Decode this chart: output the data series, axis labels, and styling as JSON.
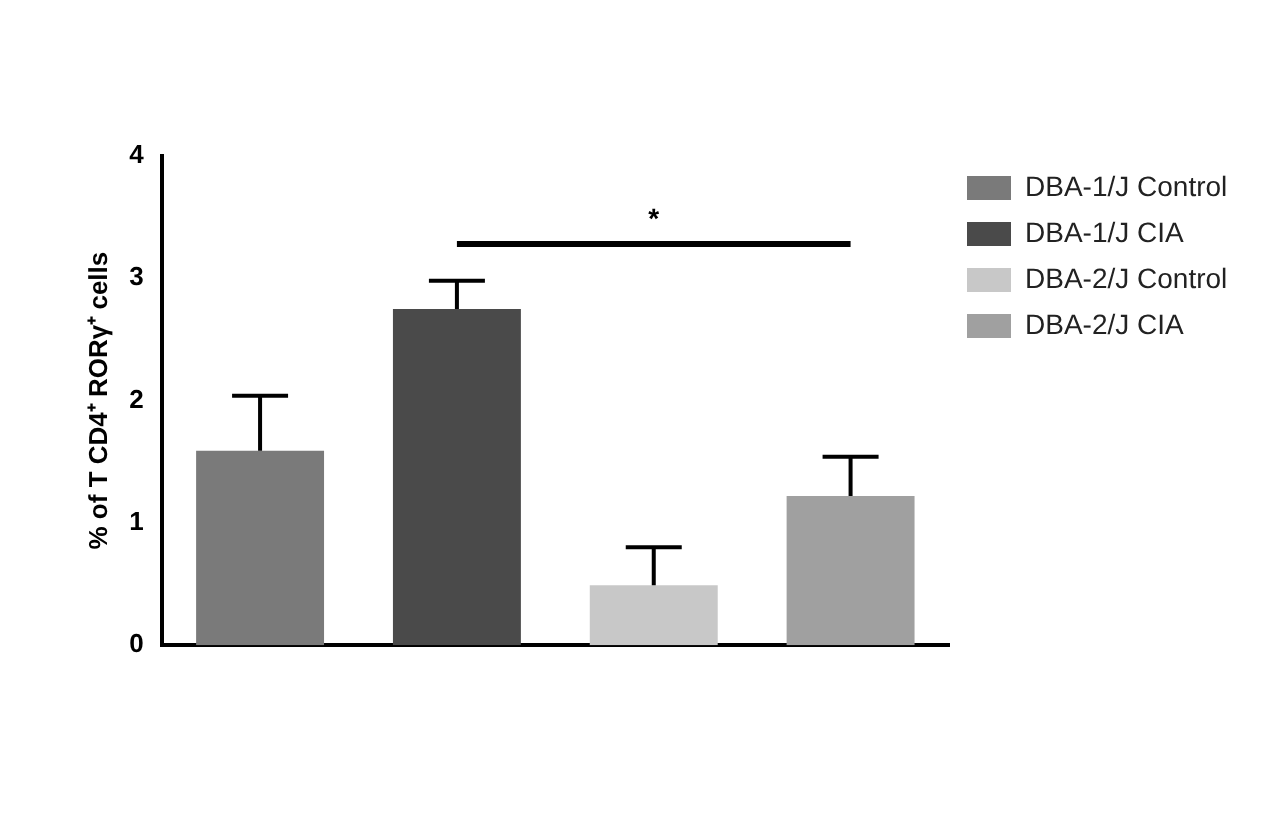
{
  "chart_data": {
    "type": "bar",
    "ylabel": "% of T CD4⁺ RORγ⁺ cells",
    "categories": [
      null,
      null,
      null,
      null
    ],
    "series": [
      {
        "name": "DBA-1/J Control",
        "color": "#7a7a7a",
        "values": [
          1.59,
          null,
          null,
          null
        ],
        "errors": [
          0.45,
          null,
          null,
          null
        ]
      },
      {
        "name": "DBA-1/J CIA",
        "color": "#4a4a4a",
        "values": [
          null,
          2.75,
          null,
          null
        ],
        "errors": [
          null,
          0.23,
          null,
          null
        ]
      },
      {
        "name": "DBA-2/J Control",
        "color": "#c8c8c8",
        "values": [
          null,
          null,
          0.49,
          null
        ],
        "errors": [
          null,
          null,
          0.31,
          null
        ]
      },
      {
        "name": "DBA-2/J CIA",
        "color": "#a0a0a0",
        "values": [
          null,
          null,
          null,
          1.22
        ],
        "errors": [
          null,
          null,
          null,
          0.32
        ]
      }
    ],
    "ylim": [
      0,
      4
    ],
    "yticks": [
      0,
      1,
      2,
      3,
      4
    ],
    "grid": false,
    "legend": "top right",
    "annotations": [
      "*"
    ]
  }
}
